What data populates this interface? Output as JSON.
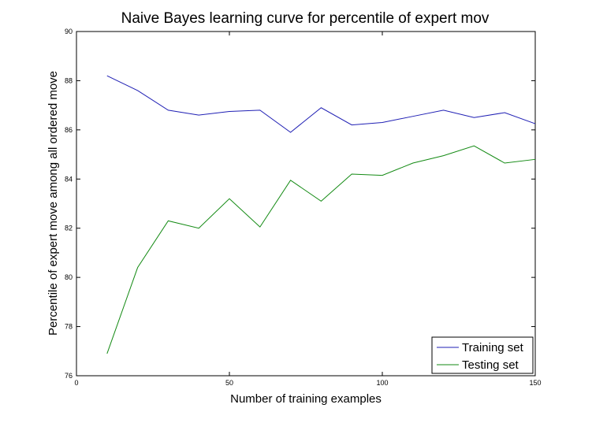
{
  "chart_data": {
    "type": "line",
    "title": "Naive Bayes learning curve for percentile of expert mov",
    "xlabel": "Number of training examples",
    "ylabel": "Percentile of expert move among all ordered move",
    "xlim": [
      0,
      150
    ],
    "ylim": [
      76,
      90
    ],
    "xticks": [
      0,
      50,
      100,
      150
    ],
    "yticks": [
      76,
      78,
      80,
      82,
      84,
      86,
      88,
      90
    ],
    "grid": false,
    "legend_position": "bottom-right",
    "x": [
      10,
      20,
      30,
      40,
      50,
      60,
      70,
      80,
      90,
      100,
      110,
      120,
      130,
      140,
      150
    ],
    "series": [
      {
        "name": "Training set",
        "color": "#1f1fb4",
        "values": [
          88.2,
          87.6,
          86.8,
          86.6,
          86.75,
          86.8,
          85.9,
          86.9,
          86.2,
          86.3,
          86.55,
          86.8,
          86.5,
          86.7,
          86.25
        ]
      },
      {
        "name": "Testing set",
        "color": "#138a13",
        "values": [
          76.9,
          80.4,
          82.3,
          82.0,
          83.2,
          82.05,
          83.95,
          83.1,
          84.2,
          84.15,
          84.65,
          84.95,
          85.35,
          84.65,
          84.8
        ]
      }
    ]
  }
}
